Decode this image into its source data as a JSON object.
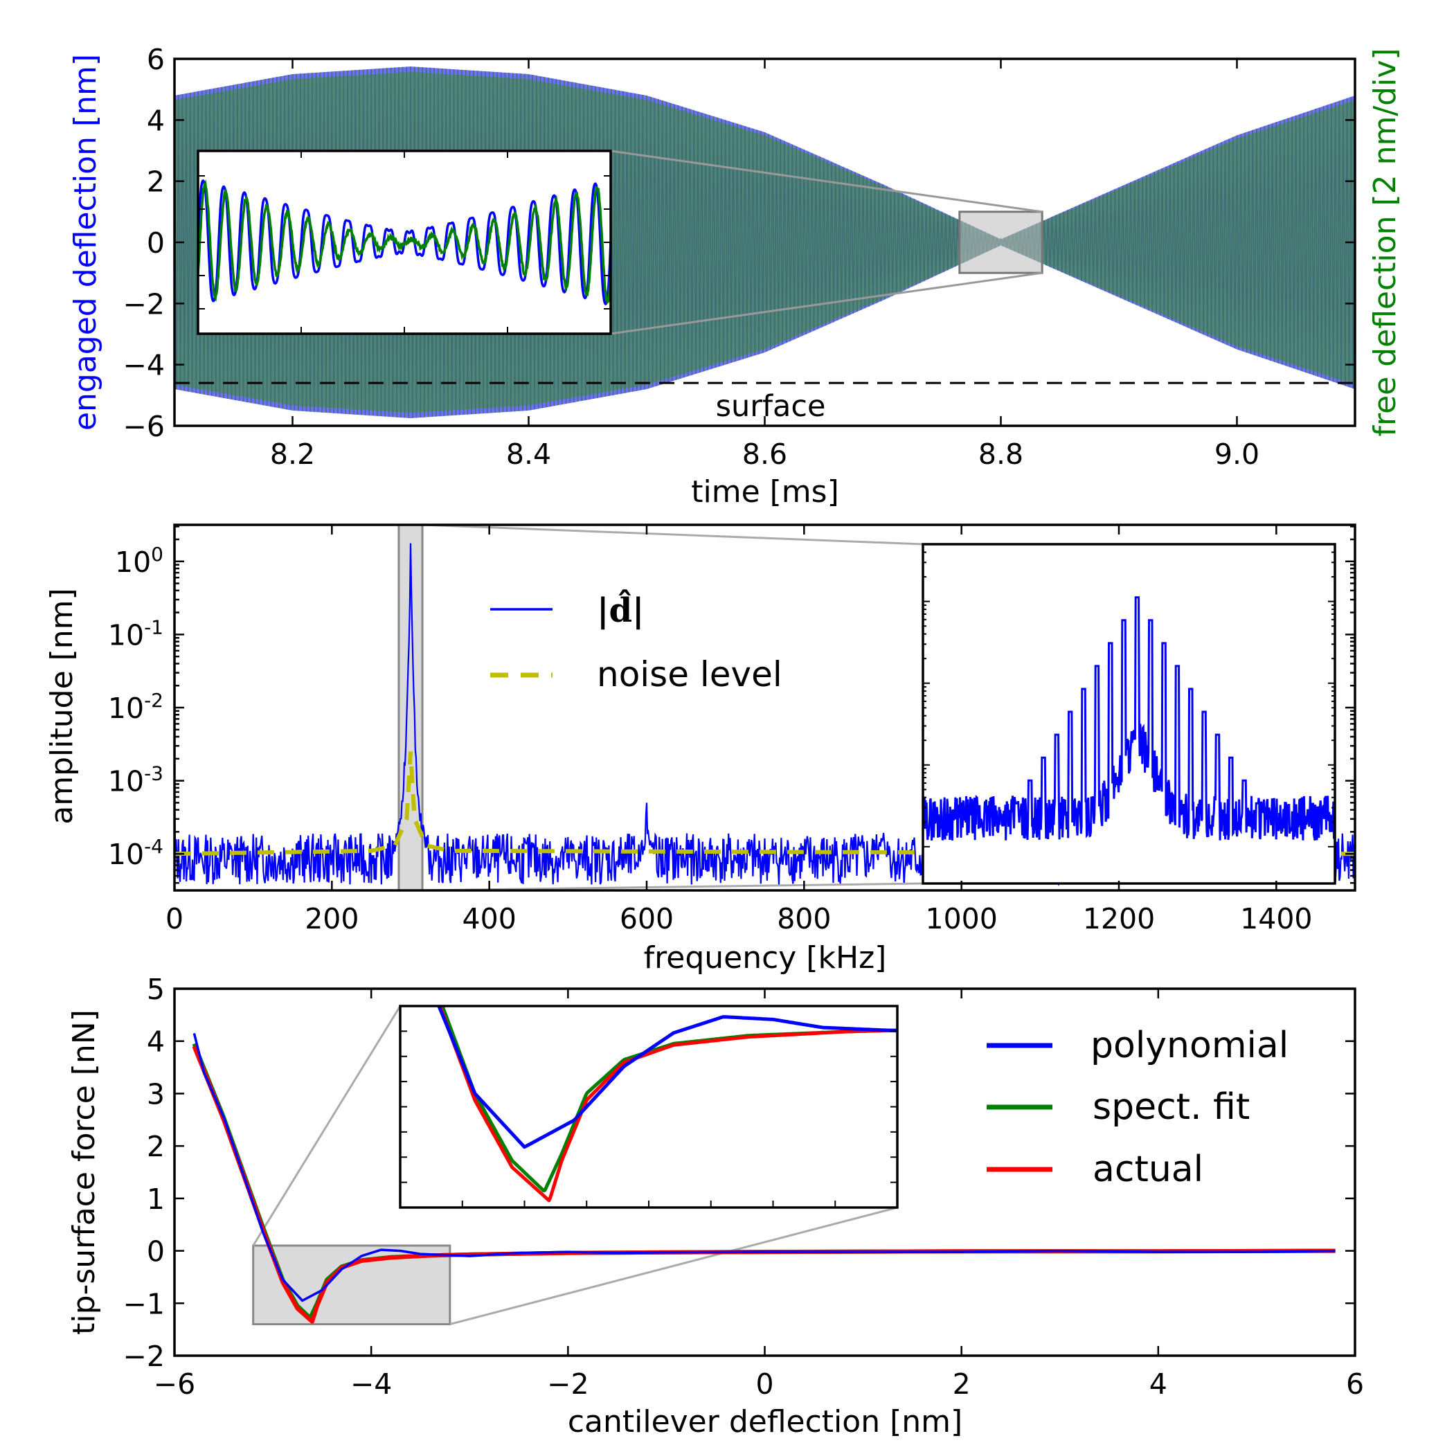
{
  "chart_data": [
    {
      "type": "line",
      "title": "",
      "xlabel": "time [ms]",
      "ylabel_left": "engaged deflection [nm]",
      "ylabel_right": "free deflection [2 nm/div]",
      "xlim": [
        8.1,
        9.1
      ],
      "ylim": [
        -6,
        6
      ],
      "x_ticks": [
        "8.2",
        "8.4",
        "8.6",
        "8.8",
        "9.0"
      ],
      "y_ticks": [
        "−6",
        "−4",
        "−2",
        "0",
        "2",
        "4",
        "6"
      ],
      "annotation": "surface",
      "surface_level": -4.6,
      "series": [
        {
          "name": "engaged deflection",
          "color": "#0000ff",
          "envelope": {
            "x": [
              8.1,
              8.2,
              8.3,
              8.4,
              8.5,
              8.6,
              8.7,
              8.8,
              8.9,
              9.0,
              9.1
            ],
            "amplitude": [
              4.8,
              5.5,
              5.75,
              5.5,
              4.8,
              3.6,
              1.9,
              0.1,
              1.8,
              3.5,
              4.8
            ]
          }
        },
        {
          "name": "free deflection",
          "color": "#008000",
          "envelope": {
            "x": [
              8.1,
              8.2,
              8.3,
              8.4,
              8.5,
              8.6,
              8.7,
              8.8,
              8.9,
              9.0,
              9.1
            ],
            "amplitude": [
              4.8,
              5.5,
              5.75,
              5.5,
              4.8,
              3.6,
              1.9,
              0.1,
              1.8,
              3.5,
              4.8
            ]
          }
        }
      ],
      "zoom_region": {
        "x": [
          8.765,
          8.835
        ],
        "y": [
          -1,
          1
        ]
      }
    },
    {
      "type": "line",
      "title": "",
      "xlabel": "frequency  [kHz]",
      "ylabel": "amplitude  [nm]",
      "xlim": [
        0,
        1500
      ],
      "ylim_log10": [
        -4.5,
        0.5
      ],
      "x_ticks": [
        "0",
        "200",
        "400",
        "600",
        "800",
        "1000",
        "1200",
        "1400"
      ],
      "y_ticks": [
        {
          "base": "10",
          "exp": "0"
        },
        {
          "base": "10",
          "exp": "-1"
        },
        {
          "base": "10",
          "exp": "-2"
        },
        {
          "base": "10",
          "exp": "-3"
        },
        {
          "base": "10",
          "exp": "-4"
        }
      ],
      "series": [
        {
          "name": "|d̂|",
          "color": "#0000ff",
          "peaks_kHz": [
            300,
            600,
            900
          ],
          "peak_values_nm": [
            1.5,
            0.0004,
            0.0002
          ],
          "floor_nm": 0.0001
        },
        {
          "name": "noise level",
          "color": "#bfbf00",
          "style": "dashed",
          "x": [
            0,
            250,
            280,
            295,
            300,
            305,
            320,
            350,
            1500
          ],
          "values_nm": [
            0.0001,
            0.00011,
            0.00013,
            0.0003,
            0.0025,
            0.0003,
            0.00013,
            0.00011,
            0.0001
          ]
        }
      ],
      "legend": {
        "placement": "upper center",
        "entries": [
          "|d̂|",
          "noise level"
        ]
      },
      "zoom_region": {
        "x": [
          285,
          315
        ]
      }
    },
    {
      "type": "line",
      "title": "",
      "xlabel": "cantilever deflection [nm]",
      "ylabel": "tip-surface force  [nN]",
      "xlim": [
        -6,
        6
      ],
      "ylim": [
        -2,
        5
      ],
      "x_ticks": [
        "−6",
        "−4",
        "−2",
        "0",
        "2",
        "4",
        "6"
      ],
      "y_ticks": [
        "−2",
        "−1",
        "0",
        "1",
        "2",
        "3",
        "4",
        "5"
      ],
      "series": [
        {
          "name": "polynomial",
          "color": "#0000ff",
          "x": [
            -5.8,
            -5.7,
            -5.5,
            -5.3,
            -5.1,
            -4.9,
            -4.7,
            -4.5,
            -4.3,
            -4.1,
            -3.9,
            -3.7,
            -3.5,
            -3.0,
            -2.5,
            -2.0,
            -1.5,
            -1.0,
            0.0,
            1.0,
            2.0,
            3.0,
            4.0,
            5.0,
            5.8
          ],
          "y": [
            4.15,
            3.4,
            2.55,
            1.45,
            0.35,
            -0.55,
            -0.95,
            -0.75,
            -0.35,
            -0.1,
            0.02,
            0.0,
            -0.06,
            -0.1,
            -0.04,
            -0.02,
            -0.04,
            -0.03,
            -0.02,
            -0.02,
            -0.02,
            0.0,
            -0.02,
            -0.02,
            0.0
          ]
        },
        {
          "name": "spect. fit",
          "color": "#008000",
          "x": [
            -5.8,
            -5.5,
            -5.3,
            -5.1,
            -4.9,
            -4.75,
            -4.62,
            -4.55,
            -4.45,
            -4.3,
            -4.1,
            -3.8,
            -3.4,
            -3.0,
            -2.0,
            -1.0,
            0.0,
            2.0,
            4.0,
            5.8
          ],
          "y": [
            3.95,
            2.55,
            1.5,
            0.45,
            -0.55,
            -1.05,
            -1.28,
            -1.0,
            -0.55,
            -0.3,
            -0.18,
            -0.12,
            -0.09,
            -0.07,
            -0.04,
            -0.03,
            -0.02,
            -0.01,
            -0.01,
            0.0
          ]
        },
        {
          "name": "actual",
          "color": "#ff0000",
          "x": [
            -5.8,
            -5.5,
            -5.3,
            -5.1,
            -4.9,
            -4.75,
            -4.6,
            -4.55,
            -4.45,
            -4.3,
            -4.1,
            -3.8,
            -3.4,
            -3.0,
            -2.0,
            -1.0,
            0.0,
            2.0,
            4.0,
            5.8
          ],
          "y": [
            3.9,
            2.5,
            1.45,
            0.4,
            -0.6,
            -1.1,
            -1.35,
            -1.05,
            -0.6,
            -0.32,
            -0.19,
            -0.13,
            -0.09,
            -0.07,
            -0.04,
            -0.03,
            -0.02,
            -0.01,
            -0.01,
            0.0
          ]
        }
      ],
      "legend": {
        "placement": "upper right",
        "entries": [
          "polynomial",
          "spect. fit",
          "actual"
        ]
      },
      "zoom_region": {
        "x": [
          -5.2,
          -3.2
        ],
        "y": [
          -1.4,
          0.1
        ]
      }
    }
  ]
}
